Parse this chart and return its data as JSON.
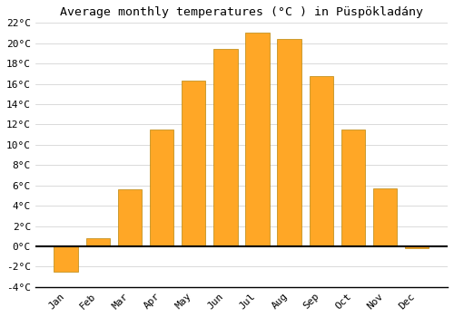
{
  "title": "Average monthly temperatures (°C ) in Püspökladány",
  "months": [
    "Jan",
    "Feb",
    "Mar",
    "Apr",
    "May",
    "Jun",
    "Jul",
    "Aug",
    "Sep",
    "Oct",
    "Nov",
    "Dec"
  ],
  "values": [
    -2.5,
    0.8,
    5.6,
    11.5,
    16.3,
    19.4,
    21.0,
    20.4,
    16.8,
    11.5,
    5.7,
    -0.2
  ],
  "bar_color": "#FFA726",
  "bar_edge_color": "#B8860B",
  "background_color": "#FFFFFF",
  "grid_color": "#CCCCCC",
  "ylim": [
    -4,
    22
  ],
  "yticks": [
    -4,
    -2,
    0,
    2,
    4,
    6,
    8,
    10,
    12,
    14,
    16,
    18,
    20,
    22
  ],
  "title_fontsize": 9.5,
  "tick_fontsize": 8,
  "bar_width": 0.75,
  "zero_line_color": "#000000",
  "spine_color": "#000000"
}
